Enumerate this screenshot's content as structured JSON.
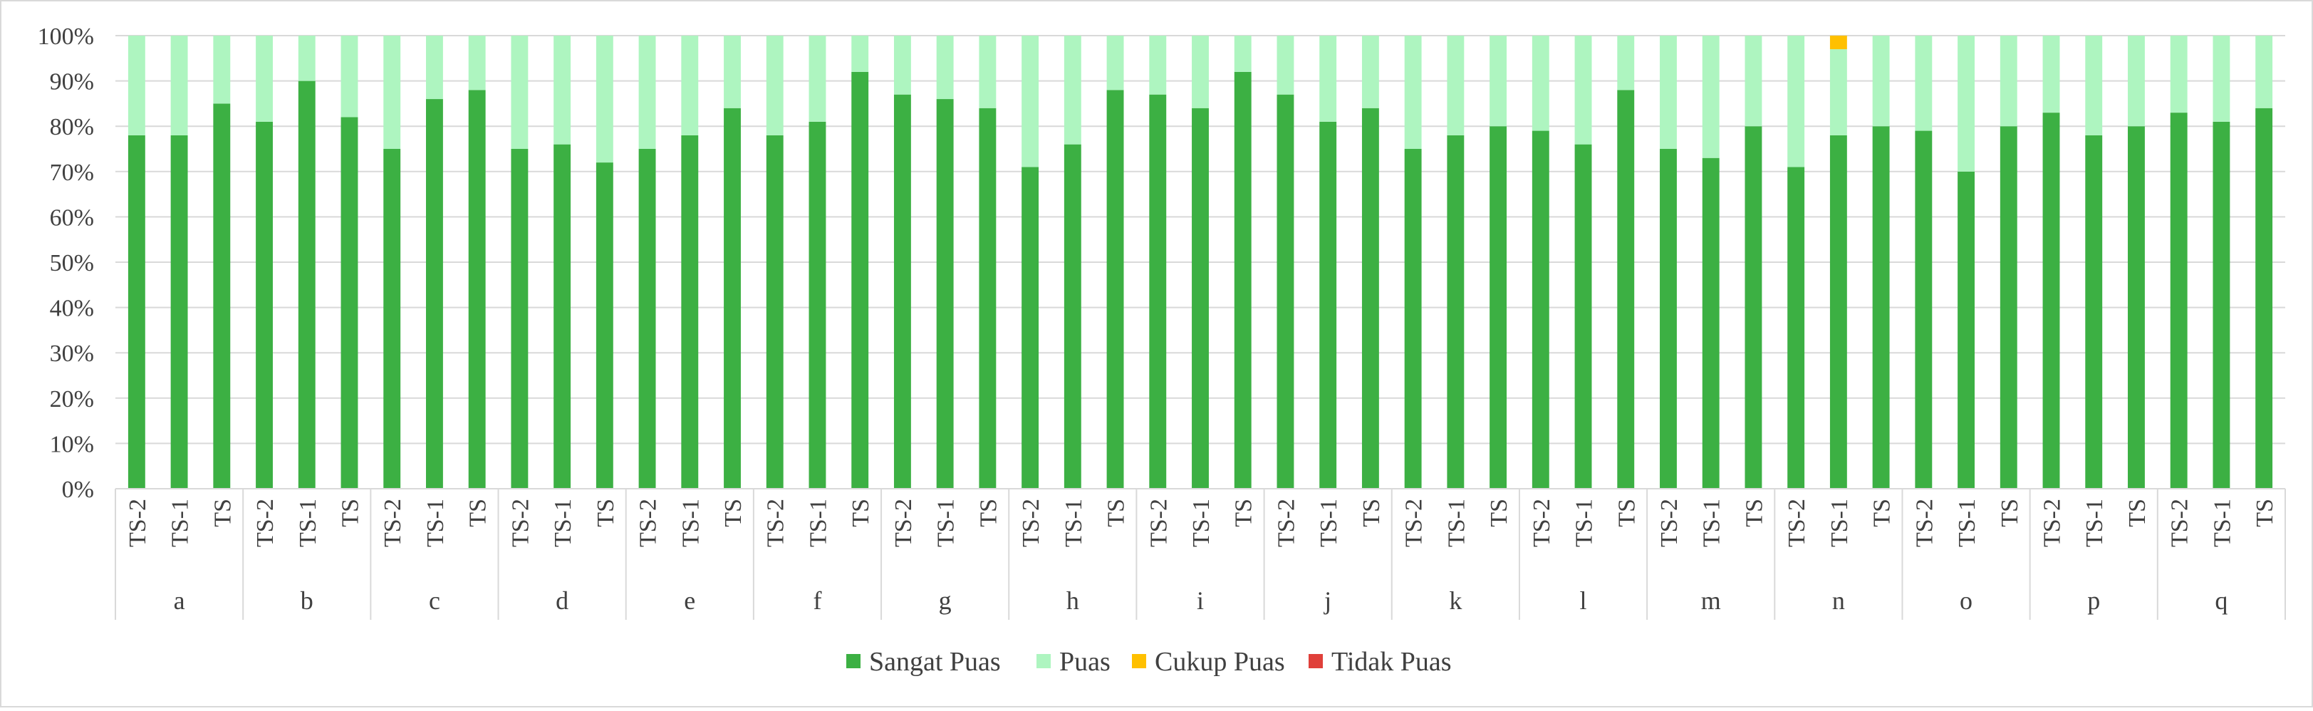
{
  "chart_data": {
    "type": "bar",
    "stacked": true,
    "percent_stacked": true,
    "groups": [
      "a",
      "b",
      "c",
      "d",
      "e",
      "f",
      "g",
      "h",
      "i",
      "j",
      "k",
      "l",
      "m",
      "n",
      "o",
      "p",
      "q"
    ],
    "periods": [
      "TS-2",
      "TS-1",
      "TS"
    ],
    "y_ticks": [
      "0%",
      "10%",
      "20%",
      "30%",
      "40%",
      "50%",
      "60%",
      "70%",
      "80%",
      "90%",
      "100%"
    ],
    "ylim": [
      0,
      100
    ],
    "grid": true,
    "legend_position": "bottom",
    "series": [
      {
        "name": "Sangat Puas",
        "color": "#3cb043",
        "values": [
          78,
          78,
          85,
          81,
          90,
          82,
          75,
          86,
          88,
          75,
          76,
          72,
          75,
          78,
          84,
          78,
          81,
          92,
          87,
          86,
          84,
          71,
          76,
          88,
          87,
          84,
          92,
          87,
          81,
          84,
          75,
          78,
          80,
          79,
          76,
          88,
          75,
          73,
          80,
          71,
          78,
          80,
          79,
          70,
          80,
          83,
          78,
          80,
          83,
          81,
          84
        ]
      },
      {
        "name": "Puas",
        "color": "#aef5c0",
        "values": [
          22,
          22,
          15,
          19,
          10,
          18,
          25,
          14,
          12,
          25,
          24,
          28,
          25,
          22,
          16,
          22,
          19,
          8,
          13,
          14,
          16,
          29,
          24,
          12,
          13,
          16,
          8,
          13,
          19,
          16,
          25,
          22,
          20,
          21,
          24,
          12,
          25,
          27,
          20,
          29,
          19,
          20,
          21,
          30,
          20,
          17,
          22,
          20,
          17,
          19,
          16
        ]
      },
      {
        "name": "Cukup Puas",
        "color": "#ffc000",
        "values": [
          0,
          0,
          0,
          0,
          0,
          0,
          0,
          0,
          0,
          0,
          0,
          0,
          0,
          0,
          0,
          0,
          0,
          0,
          0,
          0,
          0,
          0,
          0,
          0,
          0,
          0,
          0,
          0,
          0,
          0,
          0,
          0,
          0,
          0,
          0,
          0,
          0,
          0,
          0,
          0,
          3,
          0,
          0,
          0,
          0,
          0,
          0,
          0,
          0,
          0,
          0
        ]
      },
      {
        "name": "Tidak Puas",
        "color": "#e0403a",
        "values": [
          0,
          0,
          0,
          0,
          0,
          0,
          0,
          0,
          0,
          0,
          0,
          0,
          0,
          0,
          0,
          0,
          0,
          0,
          0,
          0,
          0,
          0,
          0,
          0,
          0,
          0,
          0,
          0,
          0,
          0,
          0,
          0,
          0,
          0,
          0,
          0,
          0,
          0,
          0,
          0,
          0,
          0,
          0,
          0,
          0,
          0,
          0,
          0,
          0,
          0,
          0
        ]
      }
    ]
  }
}
